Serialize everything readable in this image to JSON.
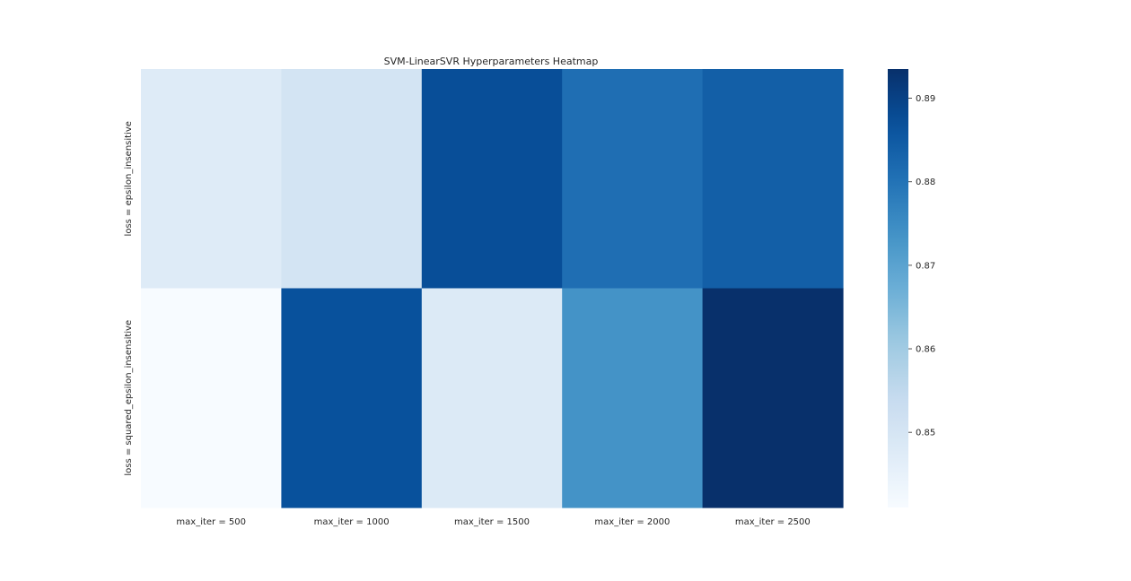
{
  "chart_data": {
    "type": "heatmap",
    "title": "SVM-LinearSVR Hyperparameters Heatmap",
    "xlabel": "",
    "ylabel": "",
    "x_categories": [
      "max_iter = 500",
      "max_iter = 1000",
      "max_iter = 1500",
      "max_iter = 2000",
      "max_iter = 2500"
    ],
    "y_categories": [
      "loss = epsilon_insensitive",
      "loss = squared_epsilon_insensitive"
    ],
    "values": [
      [
        0.8475,
        0.8505,
        0.8875,
        0.881,
        0.884
      ],
      [
        0.841,
        0.887,
        0.848,
        0.8735,
        0.8935
      ]
    ],
    "colormap": "Blues",
    "colorbar": {
      "min": 0.841,
      "max": 0.8935,
      "ticks": [
        0.85,
        0.86,
        0.87,
        0.88,
        0.89
      ],
      "tick_labels": [
        "0.85",
        "0.86",
        "0.87",
        "0.88",
        "0.89"
      ]
    },
    "grid": false,
    "legend": "colorbar-right"
  }
}
